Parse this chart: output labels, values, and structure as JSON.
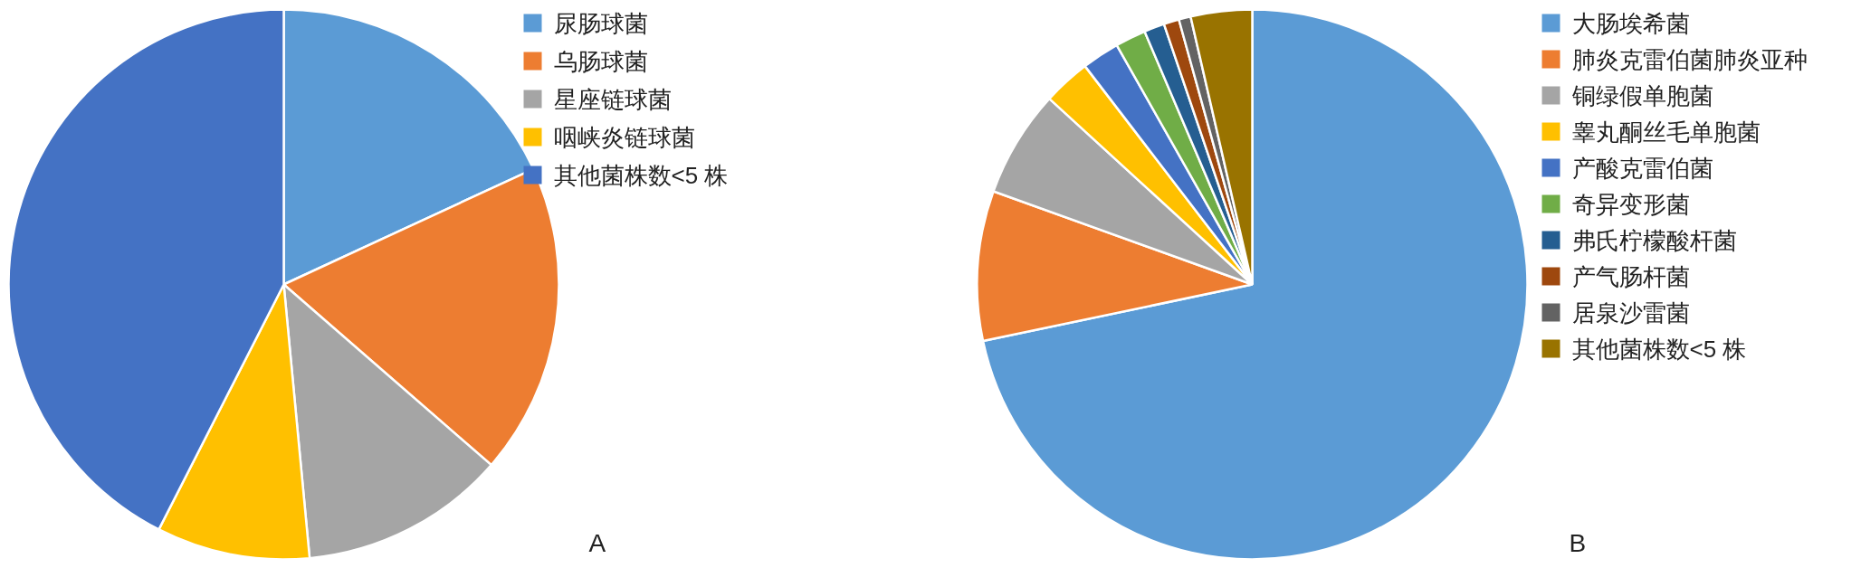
{
  "chart_data": [
    {
      "type": "pie",
      "categories": [
        "尿肠球菌",
        "乌肠球菌",
        "星座链球菌",
        "咽峡炎链球菌",
        "其他菌株数<5 株"
      ],
      "values": [
        18.1,
        18.3,
        12.1,
        9.0,
        42.5
      ],
      "colors": [
        "#5b9bd5",
        "#ed7d31",
        "#a5a5a5",
        "#ffc000",
        "#4472c4"
      ],
      "legend": "right",
      "annotations": [
        "A"
      ]
    },
    {
      "type": "pie",
      "categories": [
        "大肠埃希菌",
        "肺炎克雷伯菌肺炎亚种",
        "铜绿假单胞菌",
        "睾丸酮丝毛单胞菌",
        "产酸克雷伯菌",
        "奇异变形菌",
        "弗氏柠檬酸杆菌",
        "产气肠杆菌",
        "居泉沙雷菌",
        "其他菌株数<5 株"
      ],
      "values": [
        71.7,
        8.8,
        6.3,
        2.8,
        2.2,
        1.8,
        1.2,
        0.9,
        0.7,
        3.6
      ],
      "colors": [
        "#5b9bd5",
        "#ed7d31",
        "#a5a5a5",
        "#ffc000",
        "#4472c4",
        "#70ad47",
        "#255e91",
        "#9e480e",
        "#636363",
        "#997300"
      ],
      "legend": "right",
      "annotations": [
        "B"
      ]
    }
  ]
}
